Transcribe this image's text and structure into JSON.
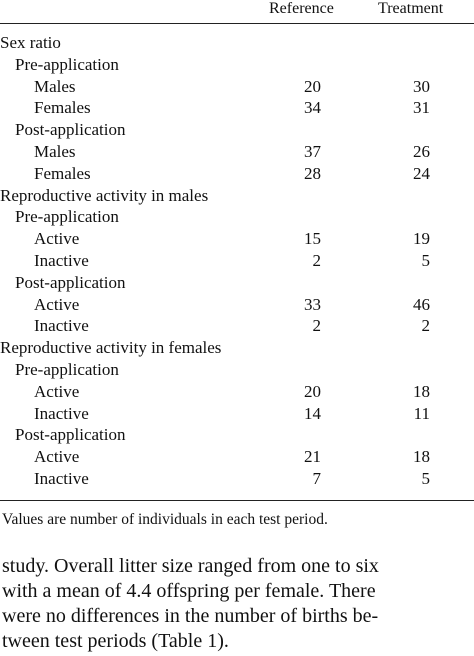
{
  "header": {
    "reference": "Reference",
    "treatment": "Treatment"
  },
  "rows": [
    {
      "label": "Sex ratio",
      "level": 0,
      "ref": "",
      "trt": ""
    },
    {
      "label": "Pre-application",
      "level": 1,
      "ref": "",
      "trt": ""
    },
    {
      "label": "Males",
      "level": 2,
      "ref": "20",
      "trt": "30"
    },
    {
      "label": "Females",
      "level": 2,
      "ref": "34",
      "trt": "31"
    },
    {
      "label": "Post-application",
      "level": 1,
      "ref": "",
      "trt": ""
    },
    {
      "label": "Males",
      "level": 2,
      "ref": "37",
      "trt": "26"
    },
    {
      "label": "Females",
      "level": 2,
      "ref": "28",
      "trt": "24"
    },
    {
      "label": "Reproductive activity in males",
      "level": 0,
      "ref": "",
      "trt": ""
    },
    {
      "label": "Pre-application",
      "level": 1,
      "ref": "",
      "trt": ""
    },
    {
      "label": "Active",
      "level": 2,
      "ref": "15",
      "trt": "19"
    },
    {
      "label": "Inactive",
      "level": 2,
      "ref": "2",
      "trt": "5"
    },
    {
      "label": "Post-application",
      "level": 1,
      "ref": "",
      "trt": ""
    },
    {
      "label": "Active",
      "level": 2,
      "ref": "33",
      "trt": "46"
    },
    {
      "label": "Inactive",
      "level": 2,
      "ref": "2",
      "trt": "2"
    },
    {
      "label": "Reproductive activity in females",
      "level": 0,
      "ref": "",
      "trt": ""
    },
    {
      "label": "Pre-application",
      "level": 1,
      "ref": "",
      "trt": ""
    },
    {
      "label": "Active",
      "level": 2,
      "ref": "20",
      "trt": "18"
    },
    {
      "label": "Inactive",
      "level": 2,
      "ref": "14",
      "trt": "11"
    },
    {
      "label": "Post-application",
      "level": 1,
      "ref": "",
      "trt": ""
    },
    {
      "label": "Active",
      "level": 2,
      "ref": "21",
      "trt": "18"
    },
    {
      "label": "Inactive",
      "level": 2,
      "ref": "7",
      "trt": "5"
    }
  ],
  "footnote": "Values are number of individuals in each test period.",
  "paragraph": {
    "lines": [
      "study. Overall litter size ranged from one to six",
      "with a mean of 4.4 offspring per female. There",
      "were no differences in the number of births be-",
      "tween test periods (Table 1)."
    ]
  }
}
